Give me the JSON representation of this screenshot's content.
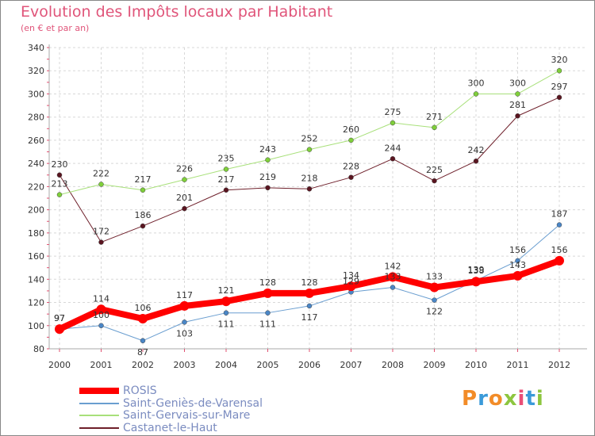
{
  "header": {
    "title": "Evolution des Impôts locaux par Habitant",
    "subtitle": "(en € et par an)"
  },
  "logo": {
    "text": "Proxiti",
    "colors": [
      "#f28c28",
      "#3a9ad9",
      "#f28c28",
      "#8dc63f",
      "#e94e77",
      "#3a9ad9",
      "#8dc63f"
    ]
  },
  "chart_data": {
    "type": "line",
    "x": [
      "2000",
      "2001",
      "2002",
      "2003",
      "2004",
      "2005",
      "2006",
      "2007",
      "2008",
      "2009",
      "2010",
      "2011",
      "2012"
    ],
    "ylim": [
      80,
      340
    ],
    "yticks": [
      80,
      100,
      120,
      140,
      160,
      180,
      200,
      220,
      240,
      260,
      280,
      300,
      320,
      340
    ],
    "grid": true,
    "legend_position": "bottom-left",
    "series": [
      {
        "name": "Castanet-le-Haut",
        "color": "#6e1f2a",
        "marker": "#5a1520",
        "width": 1,
        "values": [
          230,
          172,
          186,
          201,
          217,
          219,
          218,
          228,
          244,
          225,
          242,
          281,
          297
        ]
      },
      {
        "name": "Saint-Gervais-sur-Mare",
        "color": "#a8e07a",
        "marker": "#7fcf3a",
        "width": 1,
        "values": [
          213,
          222,
          217,
          226,
          235,
          243,
          252,
          260,
          275,
          271,
          300,
          300,
          320
        ]
      },
      {
        "name": "Saint-Geniès-de-Varensal",
        "color": "#6a9ed0",
        "marker": "#4a86c6",
        "width": 1,
        "values": [
          97,
          100,
          87,
          103,
          111,
          111,
          117,
          129,
          133,
          122,
          139,
          156,
          187
        ]
      },
      {
        "name": "ROSIS",
        "color": "#ff0000",
        "marker": "#ff0000",
        "width": 8,
        "values": [
          97,
          114,
          106,
          117,
          121,
          128,
          128,
          134,
          142,
          133,
          138,
          143,
          156
        ]
      }
    ],
    "legend_order": [
      "ROSIS",
      "Saint-Geniès-de-Varensal",
      "Saint-Gervais-sur-Mare",
      "Castanet-le-Haut"
    ]
  }
}
